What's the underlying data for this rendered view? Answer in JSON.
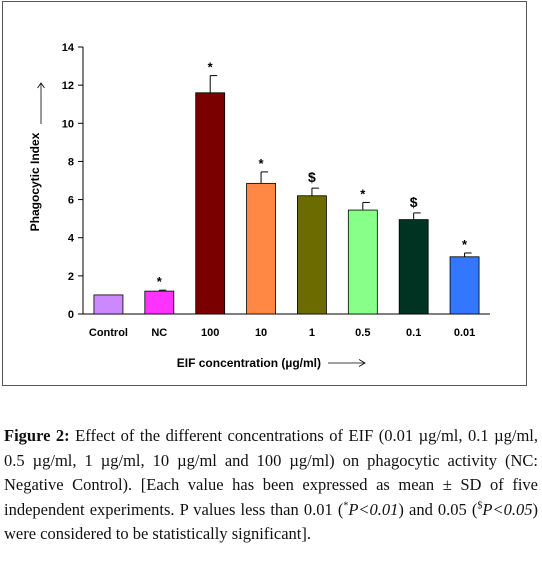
{
  "chart_data": {
    "type": "bar",
    "categories": [
      "Control",
      "NC",
      "100",
      "10",
      "1",
      "0.5",
      "0.1",
      "0.01"
    ],
    "values": [
      1.0,
      1.2,
      11.6,
      6.85,
      6.2,
      5.45,
      4.95,
      3.0
    ],
    "errors": [
      0.0,
      0.05,
      0.9,
      0.6,
      0.4,
      0.4,
      0.35,
      0.2
    ],
    "significance": [
      "",
      "*",
      "*",
      "*",
      "$",
      "*",
      "$",
      "*"
    ],
    "bar_colors": [
      "#cc88ff",
      "#ff33ff",
      "#7a0000",
      "#ff8844",
      "#6b6b00",
      "#88ff88",
      "#003322",
      "#3377ff"
    ],
    "xlabel": "EIF concentration (µg/ml)",
    "ylabel": "Phagocytic Index",
    "ylim": [
      0,
      14
    ],
    "yticks": [
      0,
      2,
      4,
      6,
      8,
      10,
      12,
      14
    ],
    "grid": false,
    "legend": "none"
  },
  "caption": {
    "label": "Figure 2:",
    "text_before_star": " Effect of the different concentrations of EIF (0.01 µg/ml, 0.1 µg/ml, 0.5 µg/ml, 1 µg/ml, 10 µg/ml and 100 µg/ml) on phagocytic activity (NC: Negative Control). [Each value has been expressed as mean ± SD of five independent experiments. P values less than 0.01 (",
    "star_sup": "*",
    "p_star": "P<0.01",
    "text_middle": ") and 0.05 (",
    "dollar_sup": "$",
    "p_dollar": "P<0.05",
    "text_after": ") were considered to be statistically significant]."
  }
}
